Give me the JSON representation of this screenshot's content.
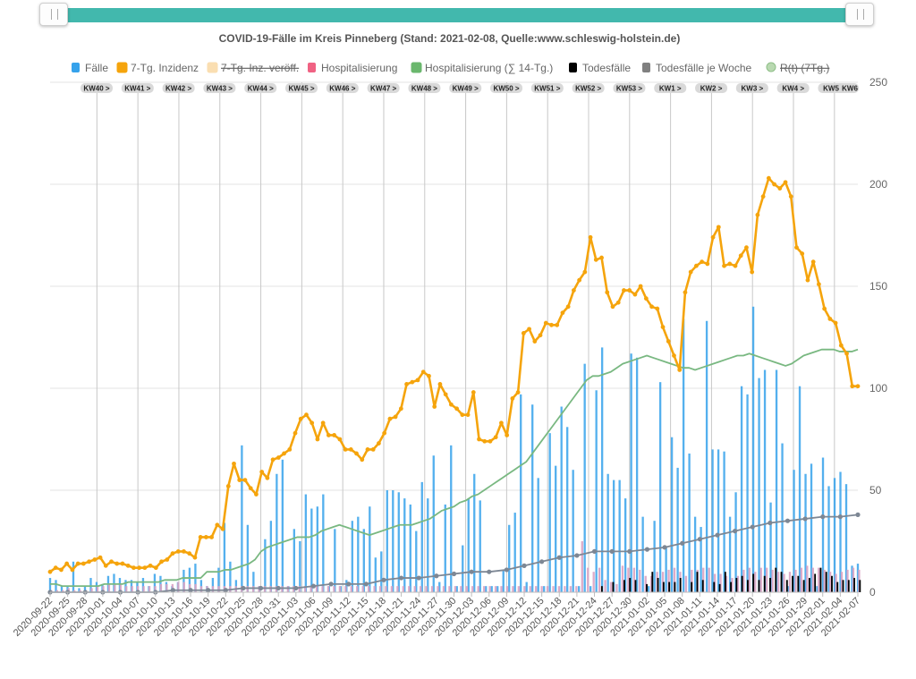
{
  "chart_data": {
    "type": "bar",
    "title": "COVID-19-Fälle im Kreis Pinneberg (Stand: 2021-02-08, Quelle:www.schleswig-holstein.de)",
    "ylim": [
      0,
      250
    ],
    "y_ticks": [
      "0",
      "50",
      "100",
      "150",
      "200",
      "250"
    ],
    "y_axis_position": "right",
    "grid": true,
    "legend_position": "top",
    "legend": [
      {
        "label": "Fälle",
        "color": "#36a2eb",
        "hidden": false
      },
      {
        "label": "7-Tg. Inzidenz",
        "color": "#f5a40c",
        "hidden": false
      },
      {
        "label": "7-Tg. Inz. veröff.",
        "color": "#f8c97e",
        "hidden": true
      },
      {
        "label": "Hospitalisierung",
        "color": "#f06283",
        "hidden": false
      },
      {
        "label": "Hospitalisierung (∑ 14-Tg.)",
        "color": "#6ab76d",
        "hidden": false
      },
      {
        "label": "Todesfälle",
        "color": "#000000",
        "hidden": false
      },
      {
        "label": "Todesfälle je Woche",
        "color": "#808080",
        "hidden": false
      },
      {
        "label": "R(t) (7Tg.)",
        "color": "#b9d9b1",
        "hidden": true
      }
    ],
    "x_start": "2020-09-22",
    "x_end": "2021-02-07",
    "date_labels": [
      "2020-09-22",
      "2020-09-25",
      "2020-09-28",
      "2020-10-01",
      "2020-10-04",
      "2020-10-07",
      "2020-10-10",
      "2020-10-13",
      "2020-10-16",
      "2020-10-19",
      "2020-10-22",
      "2020-10-25",
      "2020-10-28",
      "2020-10-31",
      "2020-11-03",
      "2020-11-06",
      "2020-11-09",
      "2020-11-12",
      "2020-11-15",
      "2020-11-18",
      "2020-11-21",
      "2020-11-24",
      "2020-11-27",
      "2020-11-30",
      "2020-12-03",
      "2020-12-06",
      "2020-12-09",
      "2020-12-12",
      "2020-12-15",
      "2020-12-18",
      "2020-12-21",
      "2020-12-24",
      "2020-12-27",
      "2020-12-30",
      "2021-01-02",
      "2021-01-05",
      "2021-01-08",
      "2021-01-11",
      "2021-01-14",
      "2021-01-17",
      "2021-01-20",
      "2021-01-23",
      "2021-01-26",
      "2021-01-29",
      "2021-02-01",
      "2021-02-04",
      "2021-02-07"
    ],
    "week_labels": [
      "KW40 >",
      "KW41 >",
      "KW42 >",
      "KW43 >",
      "KW44 >",
      "KW45 >",
      "KW46 >",
      "KW47 >",
      "KW48 >",
      "KW49 >",
      "KW50 >",
      "KW51 >",
      "KW52 >",
      "KW53 >",
      "KW1 >",
      "KW2 >",
      "KW3 >",
      "KW4 >",
      "KW5 >",
      "KW6"
    ],
    "series": [
      {
        "name": "Fälle",
        "type": "bar",
        "values": [
          7,
          6,
          3,
          3,
          15,
          2,
          3,
          7,
          5,
          4,
          8,
          9,
          7,
          6,
          6,
          5,
          7,
          3,
          9,
          8,
          5,
          3,
          5,
          11,
          12,
          14,
          6,
          3,
          7,
          12,
          34,
          15,
          6,
          72,
          33,
          10,
          3,
          26,
          35,
          58,
          65,
          3,
          31,
          25,
          48,
          41,
          42,
          48,
          3,
          31,
          3,
          6,
          35,
          37,
          31,
          42,
          17,
          20,
          50,
          50,
          49,
          46,
          43,
          30,
          54,
          46,
          67,
          5,
          43,
          72,
          3,
          23,
          46,
          58,
          45,
          3,
          3,
          3,
          11,
          33,
          39,
          97,
          5,
          92,
          56,
          3,
          78,
          62,
          91,
          81,
          60,
          3,
          112,
          3,
          99,
          120,
          58,
          55,
          55,
          46,
          117,
          115,
          37,
          3,
          35,
          103,
          22,
          76,
          61,
          134,
          68,
          37,
          32,
          133,
          70,
          70,
          69,
          37,
          49,
          101,
          97,
          140,
          105,
          109,
          44,
          109,
          73,
          3,
          60,
          101,
          58,
          63,
          3,
          66,
          52,
          56,
          59,
          53,
          13,
          14
        ]
      },
      {
        "name": "7-Tg. Inzidenz",
        "type": "line",
        "values": [
          10,
          12,
          11,
          14,
          11,
          14,
          14,
          15,
          16,
          17,
          13,
          15,
          14,
          14,
          13,
          12,
          12,
          12,
          13,
          12,
          15,
          16,
          19,
          20,
          20,
          19,
          17,
          27,
          27,
          27,
          33,
          31,
          52,
          63,
          55,
          55,
          51,
          48,
          59,
          56,
          65,
          66,
          68,
          70,
          78,
          85,
          87,
          83,
          75,
          83,
          77,
          77,
          75,
          70,
          70,
          68,
          65,
          70,
          70,
          73,
          78,
          85,
          86,
          90,
          102,
          103,
          104,
          108,
          106,
          91,
          102,
          97,
          92,
          90,
          87,
          87,
          98,
          75,
          74,
          74,
          76,
          83,
          77,
          95,
          98,
          127,
          129,
          123,
          126,
          132,
          131,
          131,
          137,
          140,
          148,
          153,
          157,
          174,
          163,
          164,
          147,
          140,
          142,
          148,
          148,
          146,
          150,
          144,
          140,
          139,
          130,
          123,
          116,
          109,
          147,
          157,
          160,
          162,
          161,
          174,
          179,
          160,
          161,
          160,
          165,
          169,
          157,
          185,
          194,
          203,
          200,
          198,
          201,
          194,
          169,
          166,
          153,
          162,
          151,
          139,
          134,
          132,
          121,
          117,
          101,
          101
        ]
      },
      {
        "name": "Hospitalisierung (∑ 14-Tg.)",
        "type": "line",
        "values": [
          4,
          4,
          3,
          3,
          3,
          3,
          3,
          3,
          3,
          4,
          4,
          4,
          4,
          5,
          5,
          5,
          5,
          5,
          5,
          6,
          6,
          6,
          7,
          7,
          7,
          7,
          10,
          10,
          10,
          11,
          11,
          12,
          13,
          14,
          16,
          20,
          22,
          23,
          24,
          25,
          26,
          27,
          27,
          27,
          28,
          30,
          31,
          32,
          33,
          32,
          31,
          30,
          29,
          28,
          29,
          30,
          31,
          32,
          33,
          33,
          33,
          34,
          35,
          36,
          38,
          40,
          41,
          42,
          44,
          45,
          47,
          48,
          50,
          52,
          54,
          56,
          58,
          60,
          62,
          64,
          68,
          72,
          76,
          80,
          84,
          88,
          92,
          96,
          100,
          104,
          106,
          106,
          107,
          108,
          110,
          112,
          113,
          114,
          115,
          116,
          115,
          114,
          113,
          112,
          111,
          110,
          110,
          109,
          110,
          111,
          112,
          113,
          114,
          115,
          116,
          116,
          117,
          116,
          115,
          114,
          113,
          112,
          111,
          112,
          114,
          116,
          117,
          118,
          119,
          119,
          119,
          118,
          118,
          118,
          119
        ]
      },
      {
        "name": "Todesfälle je Woche",
        "type": "line",
        "values": [
          0,
          0,
          0,
          0,
          0,
          0,
          0,
          1,
          1,
          1,
          1,
          2,
          2,
          2,
          2,
          3,
          4,
          4,
          4,
          6,
          7,
          7,
          8,
          9,
          10,
          10,
          11,
          13,
          15,
          17,
          18,
          20,
          20,
          20,
          21,
          22,
          24,
          26,
          28,
          30,
          32,
          34,
          35,
          36,
          37,
          37,
          38
        ]
      },
      {
        "name": "Hospitalisierung",
        "type": "bar",
        "values": [
          1,
          1,
          1,
          2,
          1,
          1,
          1,
          2,
          3,
          3,
          4,
          4,
          4,
          3,
          3,
          3,
          3,
          3,
          3,
          4,
          4,
          4,
          5,
          5,
          4,
          4,
          3,
          3,
          3,
          3,
          3,
          3,
          3,
          3,
          3,
          3,
          3,
          3,
          3,
          3,
          3,
          3,
          3,
          3,
          3,
          3,
          3,
          3,
          3,
          3,
          3,
          3,
          3,
          3,
          3,
          3,
          3,
          3,
          3,
          3,
          3,
          3,
          3,
          3,
          3,
          3,
          3,
          3,
          3,
          3,
          3,
          3,
          3,
          3,
          3,
          3,
          3,
          3,
          3,
          3,
          3,
          3,
          3,
          3,
          3,
          3,
          3,
          3,
          3,
          3,
          3,
          3,
          25,
          12,
          10,
          12,
          6,
          5,
          4,
          13,
          12,
          12,
          11,
          8,
          8,
          10,
          10,
          11,
          12,
          10,
          8,
          11,
          11,
          12,
          12,
          9,
          9,
          8,
          7,
          8,
          11,
          12,
          10,
          12,
          12,
          11,
          10,
          9,
          10,
          11,
          12,
          13,
          12,
          12,
          11,
          10,
          9,
          10,
          11,
          12,
          11
        ]
      },
      {
        "name": "Todesfälle",
        "type": "bar",
        "values": [
          0,
          0,
          0,
          0,
          0,
          0,
          0,
          0,
          0,
          0,
          0,
          0,
          0,
          0,
          0,
          0,
          0,
          0,
          0,
          0,
          0,
          0,
          0,
          0,
          0,
          0,
          0,
          0,
          0,
          0,
          0,
          0,
          0,
          0,
          0,
          0,
          0,
          0,
          0,
          0,
          0,
          0,
          0,
          0,
          0,
          0,
          0,
          0,
          0,
          0,
          0,
          0,
          0,
          0,
          0,
          0,
          0,
          0,
          0,
          0,
          0,
          0,
          0,
          0,
          0,
          0,
          0,
          0,
          0,
          0,
          0,
          0,
          0,
          0,
          0,
          0,
          0,
          0,
          0,
          0,
          0,
          0,
          0,
          0,
          0,
          0,
          0,
          0,
          0,
          0,
          0,
          0,
          0,
          0,
          0,
          0,
          0,
          0,
          3,
          0,
          5,
          0,
          6,
          7,
          6,
          0,
          4,
          10,
          7,
          5,
          5,
          5,
          7,
          0,
          5,
          10,
          6,
          0,
          5,
          4,
          10,
          5,
          7,
          8,
          6,
          9,
          6,
          8,
          7,
          12,
          10,
          6,
          8,
          8,
          6,
          7,
          9,
          12,
          10,
          8,
          5,
          6,
          6,
          7,
          6
        ]
      }
    ]
  }
}
